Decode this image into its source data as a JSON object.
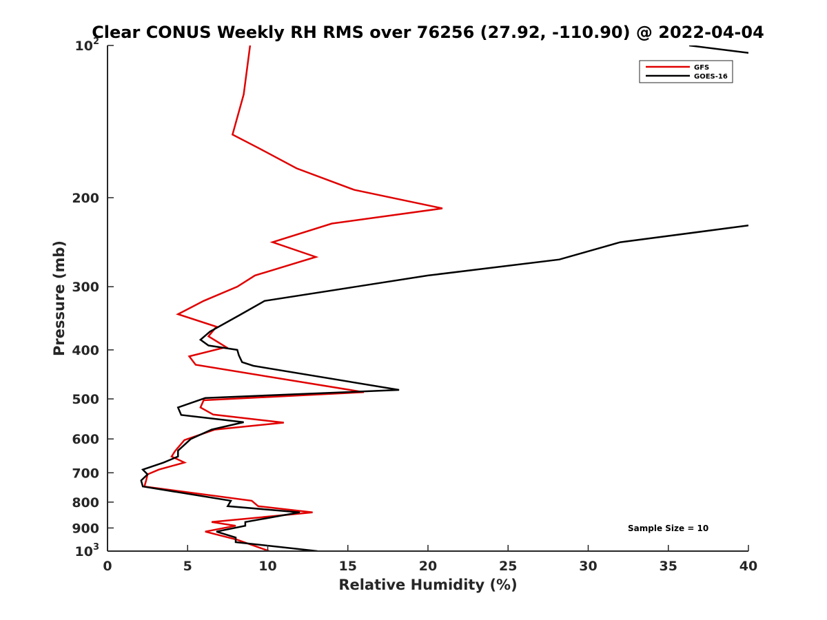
{
  "chart_data": {
    "type": "line",
    "title": "Clear CONUS Weekly RH RMS over 76256 (27.92, -110.90) @ 2022-04-04",
    "xlabel": "Relative Humidity (%)",
    "ylabel": "Pressure (mb)",
    "xlim": [
      0,
      40
    ],
    "ylim": [
      100,
      1000
    ],
    "yscale": "log",
    "yreversed": true,
    "x_ticks": [
      0,
      5,
      10,
      15,
      20,
      25,
      30,
      35,
      40
    ],
    "y_ticks": [
      {
        "value": 100,
        "label": "10",
        "exp": "2"
      },
      {
        "value": 200,
        "label": "200",
        "exp": ""
      },
      {
        "value": 300,
        "label": "300",
        "exp": ""
      },
      {
        "value": 400,
        "label": "400",
        "exp": ""
      },
      {
        "value": 500,
        "label": "500",
        "exp": ""
      },
      {
        "value": 600,
        "label": "600",
        "exp": ""
      },
      {
        "value": 700,
        "label": "700",
        "exp": ""
      },
      {
        "value": 800,
        "label": "800",
        "exp": ""
      },
      {
        "value": 900,
        "label": "900",
        "exp": ""
      },
      {
        "value": 1000,
        "label": "10",
        "exp": "3"
      }
    ],
    "legend_position": "top-right",
    "annotation": "Sample Size = 10",
    "series": [
      {
        "name": "GFS",
        "color": "#e00000",
        "points": [
          [
            8.9,
            100
          ],
          [
            8.5,
            125
          ],
          [
            7.8,
            150
          ],
          [
            9.5,
            160
          ],
          [
            11.8,
            175
          ],
          [
            15.4,
            193
          ],
          [
            20.9,
            210
          ],
          [
            14.0,
            225
          ],
          [
            10.3,
            245
          ],
          [
            13.0,
            262
          ],
          [
            9.2,
            285
          ],
          [
            8.1,
            300
          ],
          [
            6.0,
            320
          ],
          [
            4.4,
            340
          ],
          [
            6.8,
            360
          ],
          [
            6.3,
            376
          ],
          [
            7.4,
            395
          ],
          [
            5.1,
            412
          ],
          [
            5.5,
            428
          ],
          [
            16.0,
            485
          ],
          [
            6.0,
            503
          ],
          [
            5.8,
            520
          ],
          [
            6.6,
            537
          ],
          [
            11.0,
            557
          ],
          [
            6.7,
            575
          ],
          [
            4.8,
            603
          ],
          [
            4.2,
            635
          ],
          [
            4.0,
            650
          ],
          [
            4.8,
            668
          ],
          [
            3.2,
            690
          ],
          [
            2.5,
            705
          ],
          [
            2.4,
            727
          ],
          [
            2.3,
            745
          ],
          [
            9.0,
            795
          ],
          [
            9.4,
            815
          ],
          [
            12.8,
            838
          ],
          [
            6.5,
            876
          ],
          [
            8.0,
            891
          ],
          [
            6.1,
            915
          ],
          [
            8.1,
            950
          ],
          [
            10.1,
            1000
          ]
        ]
      },
      {
        "name": "GOES-16",
        "color": "#000000",
        "points": [
          [
            40.0,
            227
          ],
          [
            32.0,
            245
          ],
          [
            28.2,
            265
          ],
          [
            20.0,
            285
          ],
          [
            15.5,
            300
          ],
          [
            9.8,
            320
          ],
          [
            8.2,
            342
          ],
          [
            6.4,
            368
          ],
          [
            5.8,
            382
          ],
          [
            6.3,
            392
          ],
          [
            8.1,
            400
          ],
          [
            8.2,
            410
          ],
          [
            8.4,
            423
          ],
          [
            9.1,
            430
          ],
          [
            18.2,
            480
          ],
          [
            6.1,
            498
          ],
          [
            4.4,
            520
          ],
          [
            4.6,
            538
          ],
          [
            8.5,
            556
          ],
          [
            6.5,
            575
          ],
          [
            5.2,
            600
          ],
          [
            4.4,
            633
          ],
          [
            4.4,
            650
          ],
          [
            3.5,
            668
          ],
          [
            2.2,
            690
          ],
          [
            2.5,
            705
          ],
          [
            2.1,
            725
          ],
          [
            2.2,
            745
          ],
          [
            7.7,
            795
          ],
          [
            7.5,
            815
          ],
          [
            12.0,
            838
          ],
          [
            8.6,
            876
          ],
          [
            8.6,
            891
          ],
          [
            6.8,
            915
          ],
          [
            8.0,
            940
          ],
          [
            8.0,
            960
          ],
          [
            13.1,
            1000
          ]
        ]
      },
      {
        "name": "GOES-16 (off-scale segment)",
        "color": "#000000",
        "legend": false,
        "points": [
          [
            36.3,
            100
          ],
          [
            40.0,
            103.4
          ]
        ]
      }
    ]
  }
}
